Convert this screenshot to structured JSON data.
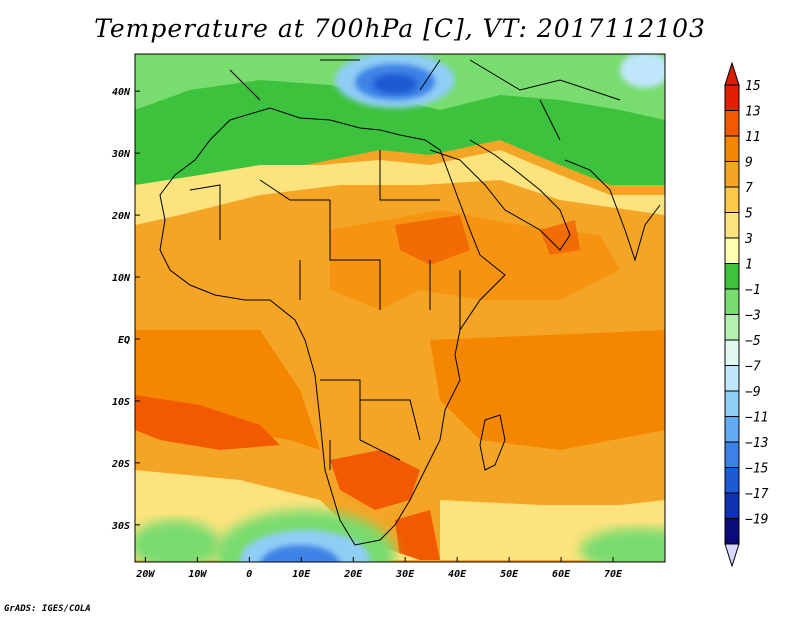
{
  "title": "Temperature at 700hPa [C], VT: 2017112103",
  "credit": "GrADS: IGES/COLA",
  "map": {
    "lon_labels": [
      "20W",
      "10W",
      "0",
      "10E",
      "20E",
      "30E",
      "40E",
      "50E",
      "60E",
      "70E"
    ],
    "lat_labels": [
      "40N",
      "30N",
      "20N",
      "10N",
      "EQ",
      "10S",
      "20S",
      "30S"
    ],
    "lon_range": [
      -22,
      80
    ],
    "lat_range": [
      -36,
      46
    ]
  },
  "colorbar": {
    "levels": [
      15,
      13,
      11,
      9,
      7,
      5,
      3,
      1,
      -1,
      -3,
      -5,
      -7,
      -9,
      -11,
      -13,
      -15,
      -17,
      -19
    ],
    "labels": [
      "15",
      "13",
      "11",
      "9",
      "7",
      "5",
      "3",
      "1",
      "−1",
      "−3",
      "−5",
      "−7",
      "−9",
      "−11",
      "−13",
      "−15",
      "−17",
      "−19"
    ],
    "colors": [
      "#e41e00",
      "#f25a00",
      "#f58700",
      "#f5a526",
      "#fbc84a",
      "#fde37e",
      "#ffffb0",
      "#3cc23c",
      "#78dc6e",
      "#b6f0b0",
      "#e0f8f0",
      "#bfe6fa",
      "#8fcdf5",
      "#5faaf0",
      "#3c82e6",
      "#1e5ad2",
      "#0f32b4",
      "#0a0a78"
    ],
    "top_color": "#d72000",
    "bottom_color": "#d8d8ff"
  }
}
